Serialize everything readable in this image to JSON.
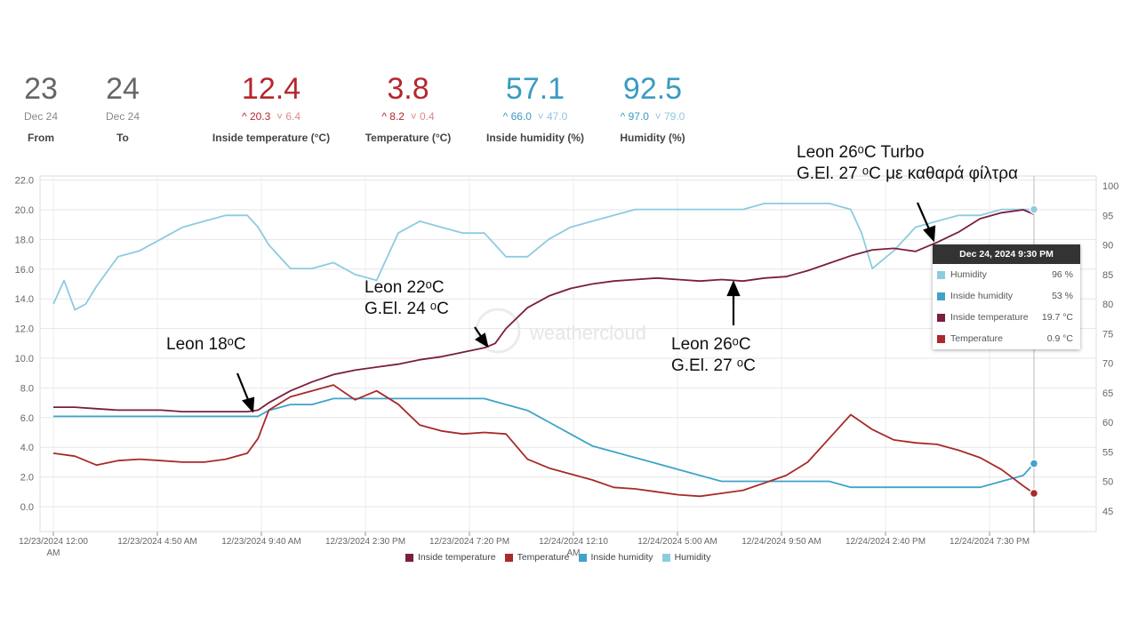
{
  "stats": [
    {
      "value": "23",
      "sub": "Dec 24",
      "label": "From",
      "color": "#666666"
    },
    {
      "value": "24",
      "sub": "Dec 24",
      "label": "To",
      "color": "#666666"
    },
    {
      "value": "12.4",
      "hi": "20.3",
      "lo": "6.4",
      "label": "Inside temperature (°C)",
      "color": "#b5272d",
      "kind": "red"
    },
    {
      "value": "3.8",
      "hi": "8.2",
      "lo": "0.4",
      "label": "Temperature (°C)",
      "color": "#b5272d",
      "kind": "red"
    },
    {
      "value": "57.1",
      "hi": "66.0",
      "lo": "47.0",
      "label": "Inside humidity (%)",
      "color": "#3a9bc0",
      "kind": "blue"
    },
    {
      "value": "92.5",
      "hi": "97.0",
      "lo": "79.0",
      "label": "Humidity (%)",
      "color": "#3a9bc0",
      "kind": "blue"
    }
  ],
  "annotations": {
    "a1": "Leon 18ᵒC",
    "a2_l1": "Leon 22ᵒC",
    "a2_l2": "G.El. 24 ᵒC",
    "a3_l1": "Leon 26ᵒC",
    "a3_l2": "G.El. 27 ᵒC",
    "a4_l1": "Leon 26ᵒC Turbo",
    "a4_l2": "G.El. 27 ᵒC με καθαρά φίλτρα"
  },
  "watermark": "weathercloud",
  "tooltip": {
    "title": "Dec 24, 2024 9:30 PM",
    "rows": [
      {
        "name": "Humidity",
        "value": "96 %",
        "color": "#8dcbe0"
      },
      {
        "name": "Inside humidity",
        "value": "53 %",
        "color": "#3fa4c8"
      },
      {
        "name": "Inside temperature",
        "value": "19.7 °C",
        "color": "#7a1f3d"
      },
      {
        "name": "Temperature",
        "value": "0.9 °C",
        "color": "#a82a2a"
      }
    ]
  },
  "legend": [
    {
      "name": "Inside temperature",
      "color": "#7a1f3d"
    },
    {
      "name": "Temperature",
      "color": "#a82a2a"
    },
    {
      "name": "Inside humidity",
      "color": "#3fa4c8"
    },
    {
      "name": "Humidity",
      "color": "#8dcbe0"
    }
  ],
  "chart_data": {
    "type": "line",
    "x_ticks": [
      "12/23/2024 12:00 AM",
      "12/23/2024 4:50 AM",
      "12/23/2024 9:40 AM",
      "12/23/2024 2:30 PM",
      "12/23/2024 7:20 PM",
      "12/24/2024 12:10 AM",
      "12/24/2024 5:00 AM",
      "12/24/2024 9:50 AM",
      "12/24/2024 2:40 PM",
      "12/24/2024 7:30 PM"
    ],
    "x_range_hours": [
      0,
      46
    ],
    "y_left": {
      "ticks": [
        "22.0",
        "20.0",
        "18.0",
        "16.0",
        "14.0",
        "12.0",
        "10.0",
        "8.0",
        "6.0",
        "4.0",
        "2.0",
        "0.0"
      ],
      "range": [
        -1,
        22
      ]
    },
    "y_right": {
      "ticks": [
        "100",
        "95",
        "90",
        "85",
        "80",
        "75",
        "70",
        "65",
        "60",
        "55",
        "50",
        "45"
      ],
      "range": [
        44,
        101
      ]
    },
    "grid": true,
    "legend_position": "bottom",
    "series": [
      {
        "name": "Inside temperature",
        "axis": "left",
        "color": "#7a1f3d",
        "x": [
          0,
          1,
          2,
          3,
          4,
          5,
          6,
          7,
          8,
          9,
          9.5,
          10,
          11,
          12,
          13,
          14,
          15,
          16,
          17,
          18,
          19,
          20,
          20.5,
          21,
          22,
          23,
          24,
          25,
          26,
          27,
          28,
          29,
          30,
          31,
          32,
          33,
          34,
          35,
          36,
          37,
          38,
          39,
          40,
          41,
          42,
          43,
          44,
          45,
          45.5
        ],
        "y": [
          6.7,
          6.7,
          6.6,
          6.5,
          6.5,
          6.5,
          6.4,
          6.4,
          6.4,
          6.4,
          6.5,
          7.0,
          7.8,
          8.4,
          8.9,
          9.2,
          9.4,
          9.6,
          9.9,
          10.1,
          10.4,
          10.7,
          11.0,
          12.0,
          13.4,
          14.2,
          14.7,
          15.0,
          15.2,
          15.3,
          15.4,
          15.3,
          15.2,
          15.3,
          15.2,
          15.4,
          15.5,
          15.9,
          16.4,
          16.9,
          17.3,
          17.4,
          17.2,
          17.8,
          18.5,
          19.4,
          19.8,
          20.0,
          19.7
        ]
      },
      {
        "name": "Temperature",
        "axis": "left",
        "color": "#a82a2a",
        "x": [
          0,
          1,
          2,
          3,
          4,
          5,
          6,
          7,
          8,
          9,
          9.5,
          10,
          11,
          12,
          13,
          14,
          15,
          16,
          17,
          18,
          19,
          20,
          21,
          22,
          23,
          24,
          25,
          26,
          27,
          28,
          29,
          30,
          31,
          32,
          33,
          34,
          35,
          36,
          37,
          38,
          39,
          40,
          41,
          42,
          43,
          44,
          45,
          45.5
        ],
        "y": [
          3.6,
          3.4,
          2.8,
          3.1,
          3.2,
          3.1,
          3.0,
          3.0,
          3.2,
          3.6,
          4.6,
          6.5,
          7.4,
          7.8,
          8.2,
          7.2,
          7.8,
          6.9,
          5.5,
          5.1,
          4.9,
          5.0,
          4.9,
          3.2,
          2.6,
          2.2,
          1.8,
          1.3,
          1.2,
          1.0,
          0.8,
          0.7,
          0.9,
          1.1,
          1.6,
          2.1,
          3.0,
          4.6,
          6.2,
          5.2,
          4.5,
          4.3,
          4.2,
          3.8,
          3.3,
          2.5,
          1.4,
          0.9
        ]
      },
      {
        "name": "Inside humidity",
        "axis": "right",
        "color": "#3fa4c8",
        "x": [
          0,
          2,
          4,
          6,
          8,
          9.5,
          10,
          11,
          12,
          13,
          14,
          15,
          16,
          17,
          18,
          19,
          20,
          21,
          22,
          23,
          24,
          25,
          26,
          27,
          28,
          29,
          30,
          31,
          32,
          33,
          34,
          35,
          36,
          37,
          38,
          39,
          40,
          41,
          42,
          43,
          44,
          45,
          45.5
        ],
        "y": [
          61,
          61,
          61,
          61,
          61,
          61,
          62,
          63,
          63,
          64,
          64,
          64,
          64,
          64,
          64,
          64,
          64,
          63,
          62,
          60,
          58,
          56,
          55,
          54,
          53,
          52,
          51,
          50,
          50,
          50,
          50,
          50,
          50,
          49,
          49,
          49,
          49,
          49,
          49,
          49,
          50,
          51,
          53
        ]
      },
      {
        "name": "Humidity",
        "axis": "right",
        "color": "#8dcbe0",
        "x": [
          0,
          0.5,
          1,
          1.5,
          2,
          3,
          4,
          5,
          6,
          7,
          8,
          9,
          9.5,
          10,
          11,
          12,
          13,
          14,
          15,
          16,
          17,
          18,
          19,
          20,
          20.5,
          21,
          22,
          23,
          24,
          25,
          26,
          27,
          28,
          29,
          30,
          31,
          32,
          33,
          34,
          35,
          36,
          37,
          37.5,
          38,
          39,
          40,
          41,
          42,
          43,
          44,
          45,
          45.5
        ],
        "y": [
          80,
          84,
          79,
          80,
          83,
          88,
          89,
          91,
          93,
          94,
          95,
          95,
          93,
          90,
          86,
          86,
          87,
          85,
          84,
          92,
          94,
          93,
          92,
          92,
          90,
          88,
          88,
          91,
          93,
          94,
          95,
          96,
          96,
          96,
          96,
          96,
          96,
          97,
          97,
          97,
          97,
          96,
          92,
          86,
          89,
          93,
          94,
          95,
          95,
          96,
          96,
          96
        ]
      }
    ]
  }
}
